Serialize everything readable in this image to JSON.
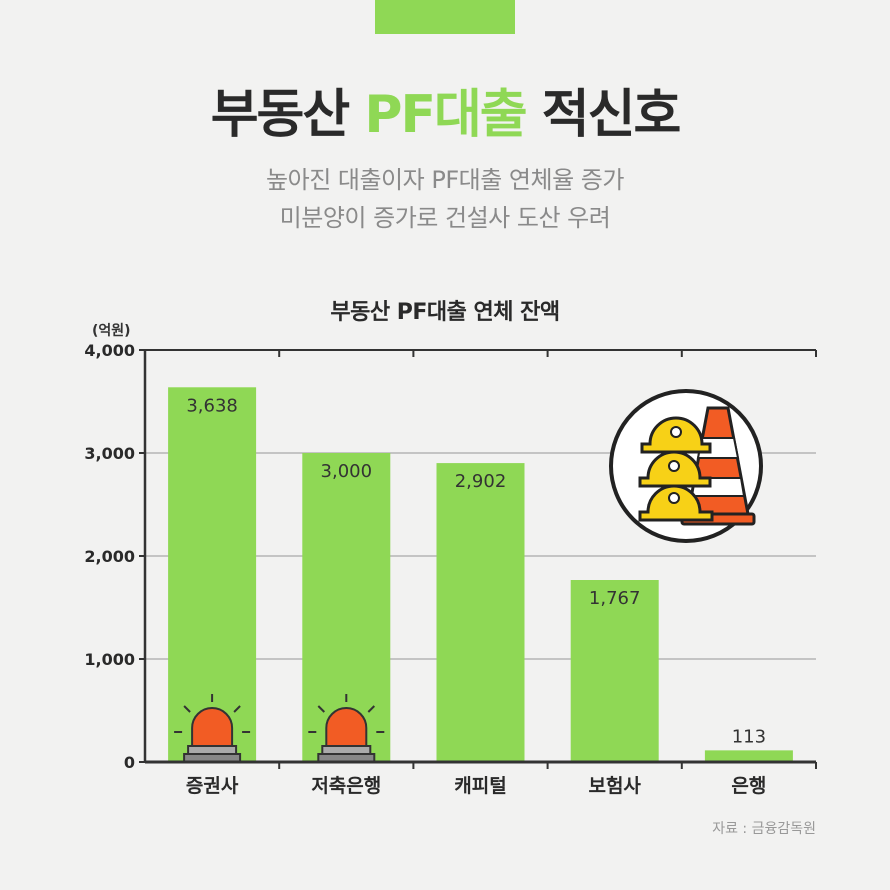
{
  "header": {
    "title_main": "부동산 ",
    "title_accent": "PF대출",
    "title_tail": " 적신호",
    "subtitle_line1": "높아진 대출이자 PF대출 연체율 증가",
    "subtitle_line2": "미분양이 증가로 건설사 도산 우려"
  },
  "footer": {
    "source": "자료 : 금융감독원"
  },
  "colors": {
    "bar": "#8fd855",
    "accent": "#8fd855",
    "text": "#2a2a2a"
  },
  "icons": [
    "siren-icon",
    "hardhat-cone-icon"
  ],
  "chart_data": {
    "type": "bar",
    "title": "부동산 PF대출 연체 잔액",
    "ylabel": "(억원)",
    "xlabel": "",
    "categories": [
      "증권사",
      "저축은행",
      "캐피털",
      "보험사",
      "은행"
    ],
    "values": [
      3638,
      3000,
      2902,
      1767,
      113
    ],
    "value_labels": [
      "3,638",
      "3,000",
      "2,902",
      "1,767",
      "113"
    ],
    "ylim": [
      0,
      4000
    ],
    "yticks": [
      0,
      1000,
      2000,
      3000,
      4000
    ],
    "ytick_labels": [
      "0",
      "1,000",
      "2,000",
      "3,000",
      "4,000"
    ],
    "grid": true,
    "siren_categories": [
      0,
      1
    ]
  }
}
